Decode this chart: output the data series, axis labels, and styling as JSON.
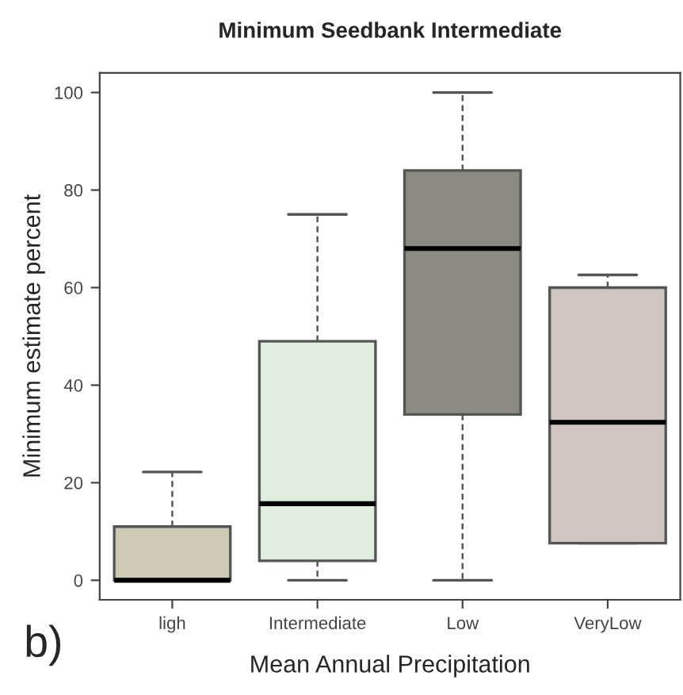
{
  "chart_data": {
    "type": "box",
    "title": "Minimum Seedbank Intermediate",
    "xlabel": "Mean Annual Precipitation",
    "ylabel": "Minimum estimate percent",
    "categories": [
      "ligh",
      "Intermediate",
      "Low",
      "VeryLow"
    ],
    "colors": [
      "#cdc8b1",
      "#e0eee0",
      "#8b8b83",
      "#cec5c1"
    ],
    "boxes": [
      {
        "low": 0,
        "q1": 0,
        "median": 0,
        "q3": 11,
        "high": 22.2
      },
      {
        "low": 0,
        "q1": 4,
        "median": 15.7,
        "q3": 49,
        "high": 75
      },
      {
        "low": 0,
        "q1": 34,
        "median": 68,
        "q3": 84,
        "high": 100
      },
      {
        "low": 7.6,
        "q1": 7.6,
        "median": 32.4,
        "q3": 60,
        "high": 62.6
      }
    ],
    "ylim": [
      -4,
      104
    ],
    "yticks": [
      0,
      20,
      40,
      60,
      80,
      100
    ],
    "grid": false,
    "legend": false,
    "annotations": [
      "b)"
    ]
  }
}
